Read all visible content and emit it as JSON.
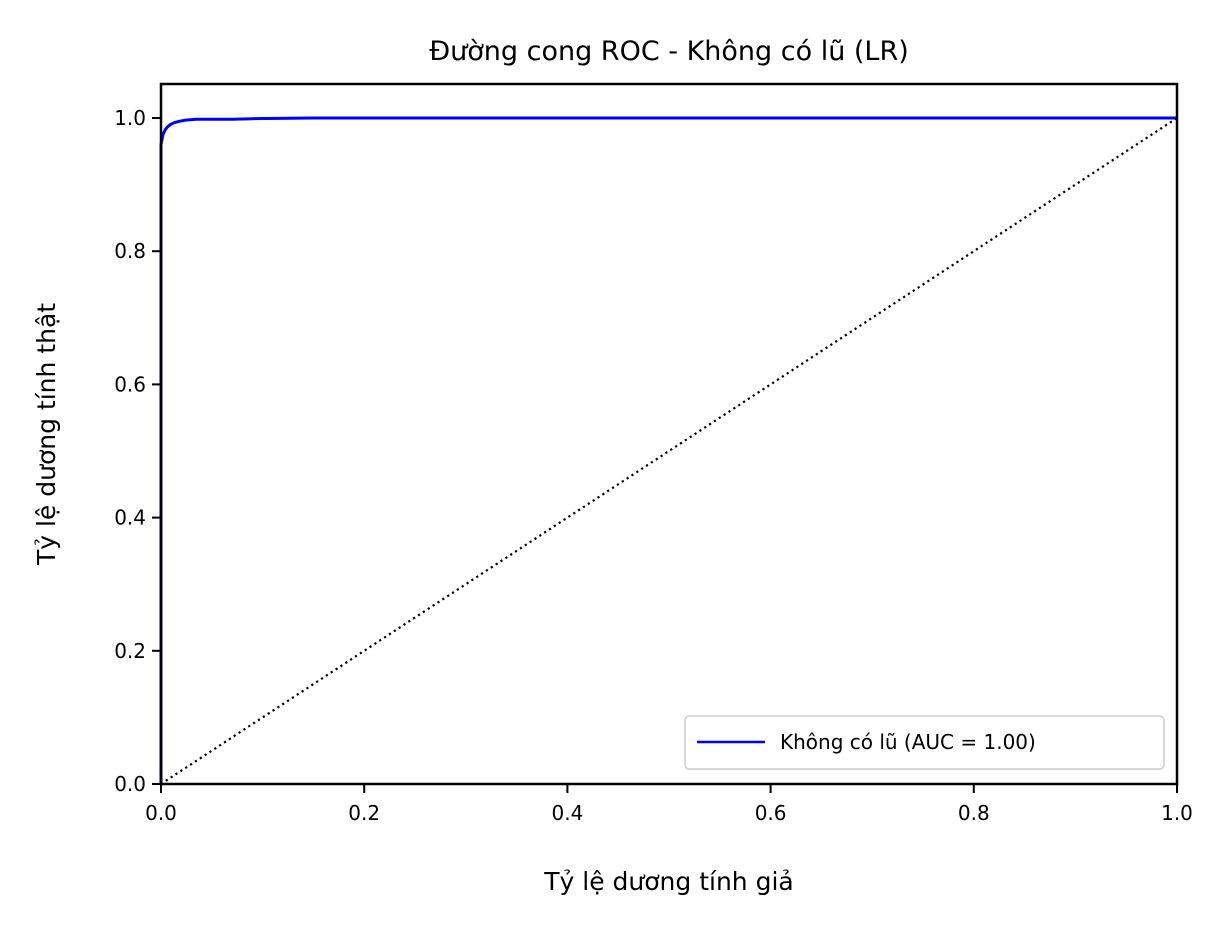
{
  "chart_data": {
    "type": "line",
    "title": "Đường cong ROC - Không có lũ (LR)",
    "xlabel": "Tỷ lệ dương tính giả",
    "ylabel": "Tỷ lệ dương tính thật",
    "xlim": [
      0.0,
      1.05
    ],
    "ylim": [
      0.0,
      1.05
    ],
    "xticks": [
      "0.0",
      "0.2",
      "0.4",
      "0.6",
      "0.8",
      "1.0"
    ],
    "yticks": [
      "0.0",
      "0.2",
      "0.4",
      "0.6",
      "0.8",
      "1.0"
    ],
    "grid": false,
    "legend_position": "lower-right",
    "series": [
      {
        "name": "Không có lũ (AUC = 1.00)",
        "color": "#0000ff",
        "style": "solid",
        "x": [
          0.0,
          0.0,
          0.002,
          0.004,
          0.006,
          0.009,
          0.013,
          0.018,
          0.025,
          0.035,
          0.05,
          0.07,
          0.09,
          0.15,
          0.3,
          0.5,
          0.7,
          0.9,
          1.0
        ],
        "y": [
          0.0,
          0.96,
          0.975,
          0.982,
          0.986,
          0.99,
          0.993,
          0.995,
          0.997,
          0.998,
          0.998,
          0.998,
          0.999,
          1.0,
          1.0,
          1.0,
          1.0,
          1.0,
          1.0
        ]
      },
      {
        "color": "#000000",
        "style": "dotted",
        "x": [
          0.0,
          1.0
        ],
        "y": [
          0.0,
          1.0
        ]
      }
    ]
  }
}
